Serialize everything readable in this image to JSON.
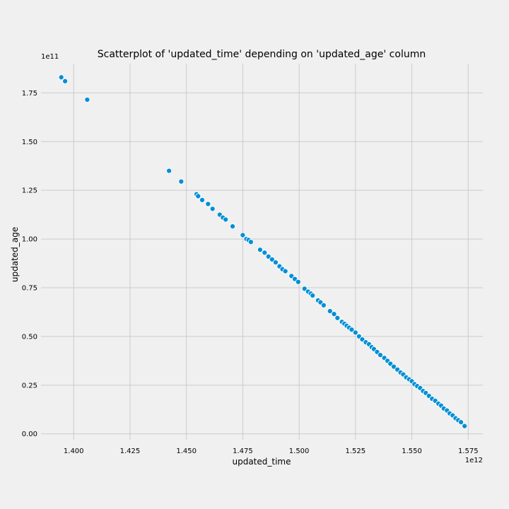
{
  "chart_data": {
    "type": "scatter",
    "title": "Scatterplot of 'updated_time' depending on 'updated_age' column",
    "xlabel": "updated_time",
    "ylabel": "updated_age",
    "x_offset_label": "1e12",
    "y_offset_label": "1e11",
    "xlim": [
      1.3855,
      1.5815
    ],
    "ylim": [
      -0.03,
      1.9
    ],
    "x_ticks": [
      1.4,
      1.425,
      1.45,
      1.475,
      1.5,
      1.525,
      1.55,
      1.575
    ],
    "x_tick_labels": [
      "1.400",
      "1.425",
      "1.450",
      "1.475",
      "1.500",
      "1.525",
      "1.550",
      "1.575"
    ],
    "y_ticks": [
      0.0,
      0.25,
      0.5,
      0.75,
      1.0,
      1.25,
      1.5,
      1.75
    ],
    "y_tick_labels": [
      "0.00",
      "0.25",
      "0.50",
      "0.75",
      "1.00",
      "1.25",
      "1.50",
      "1.75"
    ],
    "grid": true,
    "marker_color": "#008fd5",
    "marker_edge_color": "#ffffff",
    "background_color": "#f0f0f0",
    "grid_color": "#cbcbcb",
    "series": [
      {
        "x": [
          1.3945,
          1.3962,
          1.406,
          1.4423,
          1.4477,
          1.4545,
          1.4552,
          1.457,
          1.4596,
          1.4616,
          1.4648,
          1.4662,
          1.4674,
          1.4705,
          1.475,
          1.4766,
          1.4776,
          1.4786,
          1.4827,
          1.4847,
          1.4864,
          1.488,
          1.4896,
          1.4913,
          1.4926,
          1.4939,
          1.4966,
          1.4981,
          1.4996,
          1.5024,
          1.504,
          1.5052,
          1.506,
          1.5084,
          1.5095,
          1.5109,
          1.5137,
          1.5155,
          1.517,
          1.519,
          1.5201,
          1.5211,
          1.5222,
          1.5233,
          1.525,
          1.5266,
          1.528,
          1.5296,
          1.531,
          1.5322,
          1.5332,
          1.5346,
          1.536,
          1.5378,
          1.5392,
          1.5405,
          1.542,
          1.5436,
          1.545,
          1.5462,
          1.5475,
          1.5488,
          1.55,
          1.5512,
          1.5524,
          1.5537,
          1.555,
          1.5562,
          1.5576,
          1.559,
          1.5604,
          1.5618,
          1.563,
          1.5642,
          1.5656,
          1.5668,
          1.5681,
          1.5694,
          1.5706,
          1.5718,
          1.5734
        ],
        "y": [
          1.83,
          1.81,
          1.715,
          1.35,
          1.295,
          1.23,
          1.22,
          1.2,
          1.18,
          1.155,
          1.125,
          1.11,
          1.1,
          1.065,
          1.02,
          1.0,
          0.995,
          0.985,
          0.945,
          0.93,
          0.91,
          0.895,
          0.88,
          0.86,
          0.845,
          0.835,
          0.81,
          0.795,
          0.78,
          0.745,
          0.73,
          0.72,
          0.71,
          0.685,
          0.675,
          0.66,
          0.63,
          0.615,
          0.595,
          0.575,
          0.565,
          0.555,
          0.545,
          0.535,
          0.52,
          0.5,
          0.485,
          0.47,
          0.46,
          0.445,
          0.435,
          0.42,
          0.405,
          0.39,
          0.375,
          0.36,
          0.345,
          0.33,
          0.315,
          0.305,
          0.29,
          0.28,
          0.27,
          0.255,
          0.245,
          0.235,
          0.22,
          0.21,
          0.195,
          0.18,
          0.17,
          0.155,
          0.145,
          0.13,
          0.12,
          0.105,
          0.095,
          0.08,
          0.07,
          0.06,
          0.04
        ]
      }
    ]
  }
}
